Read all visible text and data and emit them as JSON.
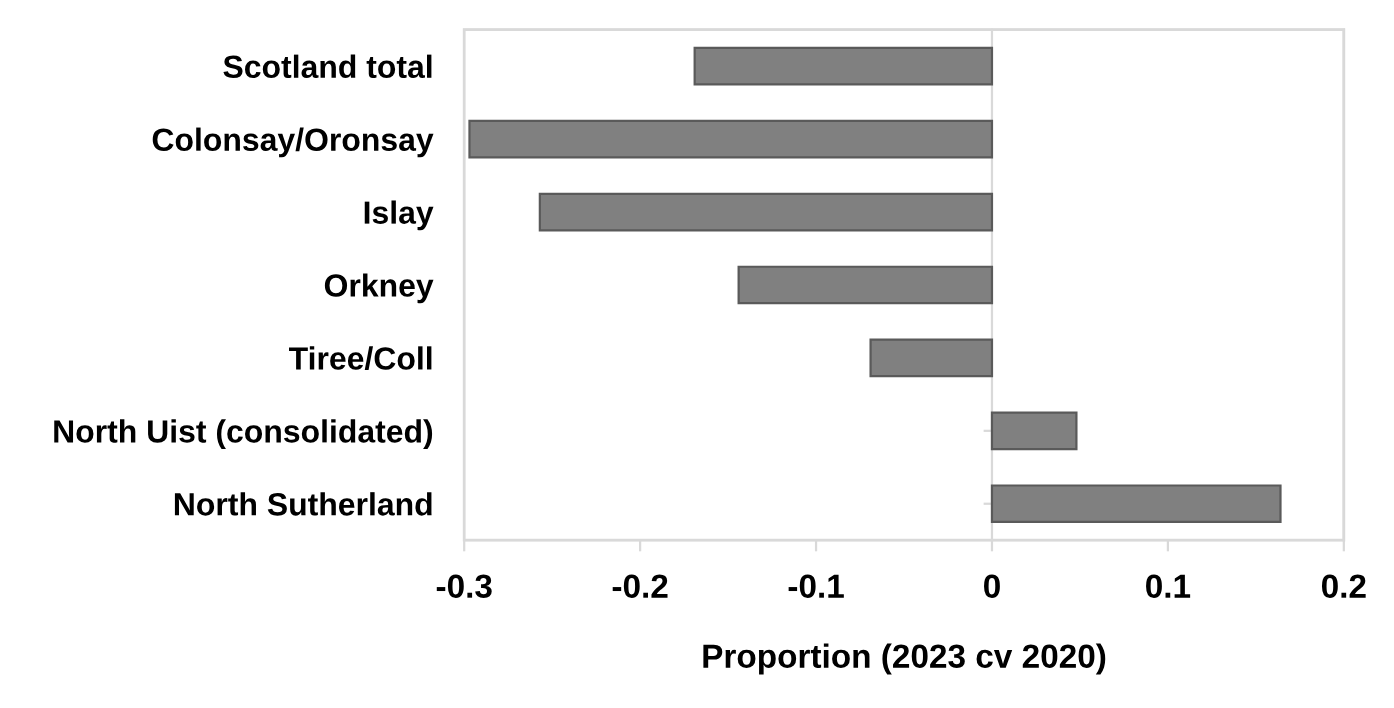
{
  "chart_data": {
    "type": "bar",
    "orientation": "horizontal",
    "xlabel": "Proportion (2023 cv 2020)",
    "categories": [
      "Scotland total",
      "Colonsay/Oronsay",
      "Islay",
      "Orkney",
      "Tiree/Coll",
      "North Uist (consolidated)",
      "North Sutherland"
    ],
    "values": [
      -0.169,
      -0.297,
      -0.257,
      -0.144,
      -0.069,
      0.048,
      0.164
    ],
    "color": "#808080",
    "xlim": [
      -0.3,
      0.2
    ],
    "xticks": [
      -0.3,
      -0.2,
      -0.1,
      0,
      0.1,
      0.2
    ],
    "legend": false
  }
}
